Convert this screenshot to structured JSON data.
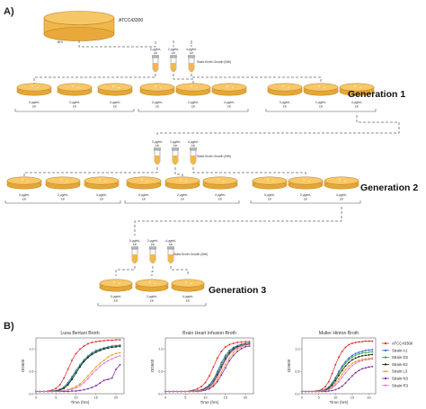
{
  "panel_a": {
    "label": "A)",
    "stock": {
      "strain": "ATCC43300",
      "media": "BHI"
    },
    "broth_note": "Static Broth Growth (BHI)",
    "tube_labels": [
      "0 µg/mL Lin",
      "2 µg/mL Lin",
      "4 µg/mL Lin"
    ],
    "plate_labels": [
      "0 µg/mL Lin",
      "2 µg/mL Lin",
      "4 µg/mL Lin"
    ],
    "generations": [
      "Generation 1",
      "Generation 2",
      "Generation 3"
    ]
  },
  "panel_b": {
    "label": "B)",
    "legend": [
      "ATCC43300",
      "Strain A1",
      "Strain D2",
      "Strain E2",
      "Strain L3",
      "Strain N3",
      "Strain R3"
    ],
    "colors": [
      "#e0201e",
      "#1f5fcc",
      "#2f9e3f",
      "#1a1a1a",
      "#ee9a1f",
      "#7a1fa0",
      "#e070c0"
    ]
  },
  "chart_data": [
    {
      "type": "line",
      "title": "Luna Bertani Broth",
      "xlabel": "Time (hrs)",
      "ylabel": "OD600",
      "xlim": [
        0,
        22
      ],
      "ylim": [
        0,
        1.25
      ],
      "xticks": [
        0,
        5,
        10,
        15,
        20
      ],
      "yticks": [
        0,
        0.5,
        1.0
      ],
      "x": [
        0,
        1,
        2,
        3,
        4,
        5,
        6,
        7,
        8,
        9,
        10,
        11,
        12,
        13,
        14,
        15,
        16,
        17,
        18,
        19,
        20,
        21
      ],
      "series": [
        {
          "name": "ATCC43300",
          "values": [
            0.05,
            0.05,
            0.05,
            0.06,
            0.08,
            0.12,
            0.2,
            0.35,
            0.55,
            0.75,
            0.9,
            1.0,
            1.07,
            1.12,
            1.15,
            1.17,
            1.18,
            1.19,
            1.2,
            1.2,
            1.21,
            1.21
          ]
        },
        {
          "name": "Strain A1",
          "values": [
            0.05,
            0.05,
            0.05,
            0.05,
            0.06,
            0.07,
            0.1,
            0.15,
            0.25,
            0.38,
            0.52,
            0.65,
            0.76,
            0.85,
            0.92,
            0.97,
            1.0,
            1.03,
            1.05,
            1.07,
            1.08,
            1.09
          ]
        },
        {
          "name": "Strain D2",
          "values": [
            0.05,
            0.05,
            0.05,
            0.05,
            0.05,
            0.07,
            0.09,
            0.14,
            0.22,
            0.35,
            0.5,
            0.63,
            0.74,
            0.83,
            0.9,
            0.95,
            0.99,
            1.02,
            1.04,
            1.06,
            1.07,
            1.08
          ]
        },
        {
          "name": "Strain E2",
          "values": [
            0.05,
            0.05,
            0.05,
            0.05,
            0.05,
            0.06,
            0.08,
            0.12,
            0.2,
            0.32,
            0.46,
            0.6,
            0.72,
            0.81,
            0.88,
            0.93,
            0.97,
            1.0,
            1.02,
            1.04,
            1.05,
            1.06
          ]
        },
        {
          "name": "Strain L3",
          "values": [
            0.05,
            0.05,
            0.05,
            0.05,
            0.05,
            0.05,
            0.06,
            0.07,
            0.09,
            0.12,
            0.16,
            0.22,
            0.3,
            0.4,
            0.5,
            0.6,
            0.68,
            0.75,
            0.82,
            0.87,
            0.9,
            0.92
          ]
        },
        {
          "name": "Strain N3",
          "values": [
            0.05,
            0.05,
            0.05,
            0.05,
            0.05,
            0.05,
            0.05,
            0.05,
            0.05,
            0.06,
            0.06,
            0.07,
            0.09,
            0.11,
            0.14,
            0.18,
            0.24,
            0.3,
            0.32,
            0.35,
            0.55,
            0.65
          ]
        },
        {
          "name": "Strain R3",
          "values": [
            0.05,
            0.05,
            0.05,
            0.05,
            0.05,
            0.05,
            0.06,
            0.07,
            0.08,
            0.1,
            0.13,
            0.18,
            0.25,
            0.34,
            0.44,
            0.53,
            0.62,
            0.68,
            0.74,
            0.78,
            0.82,
            0.85
          ]
        }
      ]
    },
    {
      "type": "line",
      "title": "Brain Heart Infusion Broth",
      "xlabel": "Time (hrs)",
      "ylabel": "OD600",
      "xlim": [
        0,
        22
      ],
      "ylim": [
        0,
        1.25
      ],
      "xticks": [
        0,
        5,
        10,
        15,
        20
      ],
      "yticks": [
        0,
        0.5,
        1.0
      ],
      "x": [
        0,
        1,
        2,
        3,
        4,
        5,
        6,
        7,
        8,
        9,
        10,
        11,
        12,
        13,
        14,
        15,
        16,
        17,
        18,
        19,
        20,
        21
      ],
      "series": [
        {
          "name": "ATCC43300",
          "values": [
            0.05,
            0.05,
            0.05,
            0.05,
            0.05,
            0.05,
            0.06,
            0.08,
            0.11,
            0.16,
            0.25,
            0.4,
            0.6,
            0.8,
            0.95,
            1.05,
            1.1,
            1.13,
            1.15,
            1.16,
            1.17,
            1.17
          ]
        },
        {
          "name": "Strain A1",
          "values": [
            0.05,
            0.05,
            0.05,
            0.05,
            0.05,
            0.05,
            0.05,
            0.06,
            0.07,
            0.09,
            0.13,
            0.2,
            0.32,
            0.5,
            0.7,
            0.86,
            0.97,
            1.04,
            1.08,
            1.11,
            1.13,
            1.14
          ]
        },
        {
          "name": "Strain D2",
          "values": [
            0.05,
            0.05,
            0.05,
            0.05,
            0.05,
            0.05,
            0.05,
            0.06,
            0.07,
            0.09,
            0.12,
            0.18,
            0.3,
            0.46,
            0.65,
            0.82,
            0.94,
            1.02,
            1.07,
            1.1,
            1.12,
            1.13
          ]
        },
        {
          "name": "Strain E2",
          "values": [
            0.05,
            0.05,
            0.05,
            0.05,
            0.05,
            0.05,
            0.05,
            0.05,
            0.06,
            0.08,
            0.11,
            0.16,
            0.26,
            0.42,
            0.6,
            0.78,
            0.91,
            1.0,
            1.05,
            1.08,
            1.1,
            1.11
          ]
        },
        {
          "name": "Strain L3",
          "values": [
            0.05,
            0.05,
            0.05,
            0.05,
            0.05,
            0.05,
            0.05,
            0.05,
            0.06,
            0.07,
            0.09,
            0.13,
            0.2,
            0.32,
            0.48,
            0.65,
            0.8,
            0.92,
            1.0,
            1.05,
            1.08,
            1.1
          ]
        },
        {
          "name": "Strain N3",
          "values": [
            0.05,
            0.05,
            0.05,
            0.05,
            0.05,
            0.05,
            0.05,
            0.05,
            0.05,
            0.06,
            0.08,
            0.11,
            0.17,
            0.27,
            0.42,
            0.58,
            0.74,
            0.86,
            0.95,
            1.01,
            1.05,
            1.07
          ]
        },
        {
          "name": "Strain R3",
          "values": [
            0.05,
            0.05,
            0.05,
            0.05,
            0.05,
            0.05,
            0.05,
            0.05,
            0.06,
            0.07,
            0.1,
            0.15,
            0.24,
            0.38,
            0.56,
            0.74,
            0.88,
            0.97,
            1.03,
            1.07,
            1.09,
            1.1
          ]
        }
      ]
    },
    {
      "type": "line",
      "title": "Muller Hinton Broth",
      "xlabel": "Time (hrs)",
      "ylabel": "OD600",
      "xlim": [
        0,
        22
      ],
      "ylim": [
        0,
        1.25
      ],
      "xticks": [
        0,
        5,
        10,
        15,
        20
      ],
      "yticks": [
        0,
        0.5,
        1.0
      ],
      "x": [
        0,
        1,
        2,
        3,
        4,
        5,
        6,
        7,
        8,
        9,
        10,
        11,
        12,
        13,
        14,
        15,
        16,
        17,
        18,
        19,
        20,
        21
      ],
      "series": [
        {
          "name": "ATCC43300",
          "values": [
            0.05,
            0.05,
            0.05,
            0.05,
            0.06,
            0.07,
            0.1,
            0.16,
            0.27,
            0.45,
            0.65,
            0.82,
            0.95,
            1.04,
            1.1,
            1.13,
            1.15,
            1.16,
            1.17,
            1.18,
            1.18,
            1.18
          ]
        },
        {
          "name": "Strain A1",
          "values": [
            0.05,
            0.05,
            0.05,
            0.05,
            0.05,
            0.06,
            0.07,
            0.1,
            0.15,
            0.24,
            0.36,
            0.5,
            0.62,
            0.72,
            0.8,
            0.86,
            0.9,
            0.93,
            0.95,
            0.97,
            0.98,
            0.99
          ]
        },
        {
          "name": "Strain D2",
          "values": [
            0.05,
            0.05,
            0.05,
            0.05,
            0.05,
            0.06,
            0.07,
            0.09,
            0.14,
            0.22,
            0.33,
            0.46,
            0.58,
            0.68,
            0.76,
            0.82,
            0.86,
            0.89,
            0.91,
            0.92,
            0.93,
            0.94
          ]
        },
        {
          "name": "Strain E2",
          "values": [
            0.05,
            0.05,
            0.05,
            0.05,
            0.05,
            0.05,
            0.06,
            0.08,
            0.12,
            0.19,
            0.29,
            0.41,
            0.52,
            0.62,
            0.7,
            0.76,
            0.8,
            0.83,
            0.85,
            0.86,
            0.87,
            0.88
          ]
        },
        {
          "name": "Strain L3",
          "values": [
            0.05,
            0.05,
            0.05,
            0.05,
            0.05,
            0.05,
            0.06,
            0.07,
            0.1,
            0.15,
            0.23,
            0.33,
            0.44,
            0.54,
            0.62,
            0.68,
            0.72,
            0.75,
            0.77,
            0.78,
            0.79,
            0.8
          ]
        },
        {
          "name": "Strain N3",
          "values": [
            0.05,
            0.05,
            0.05,
            0.05,
            0.05,
            0.05,
            0.05,
            0.05,
            0.06,
            0.07,
            0.09,
            0.12,
            0.17,
            0.24,
            0.32,
            0.4,
            0.47,
            0.52,
            0.56,
            0.58,
            0.6,
            0.61
          ]
        },
        {
          "name": "Strain R3",
          "values": [
            0.05,
            0.05,
            0.05,
            0.05,
            0.05,
            0.05,
            0.06,
            0.07,
            0.09,
            0.13,
            0.19,
            0.27,
            0.37,
            0.47,
            0.56,
            0.63,
            0.68,
            0.72,
            0.74,
            0.76,
            0.77,
            0.78
          ]
        }
      ]
    }
  ]
}
